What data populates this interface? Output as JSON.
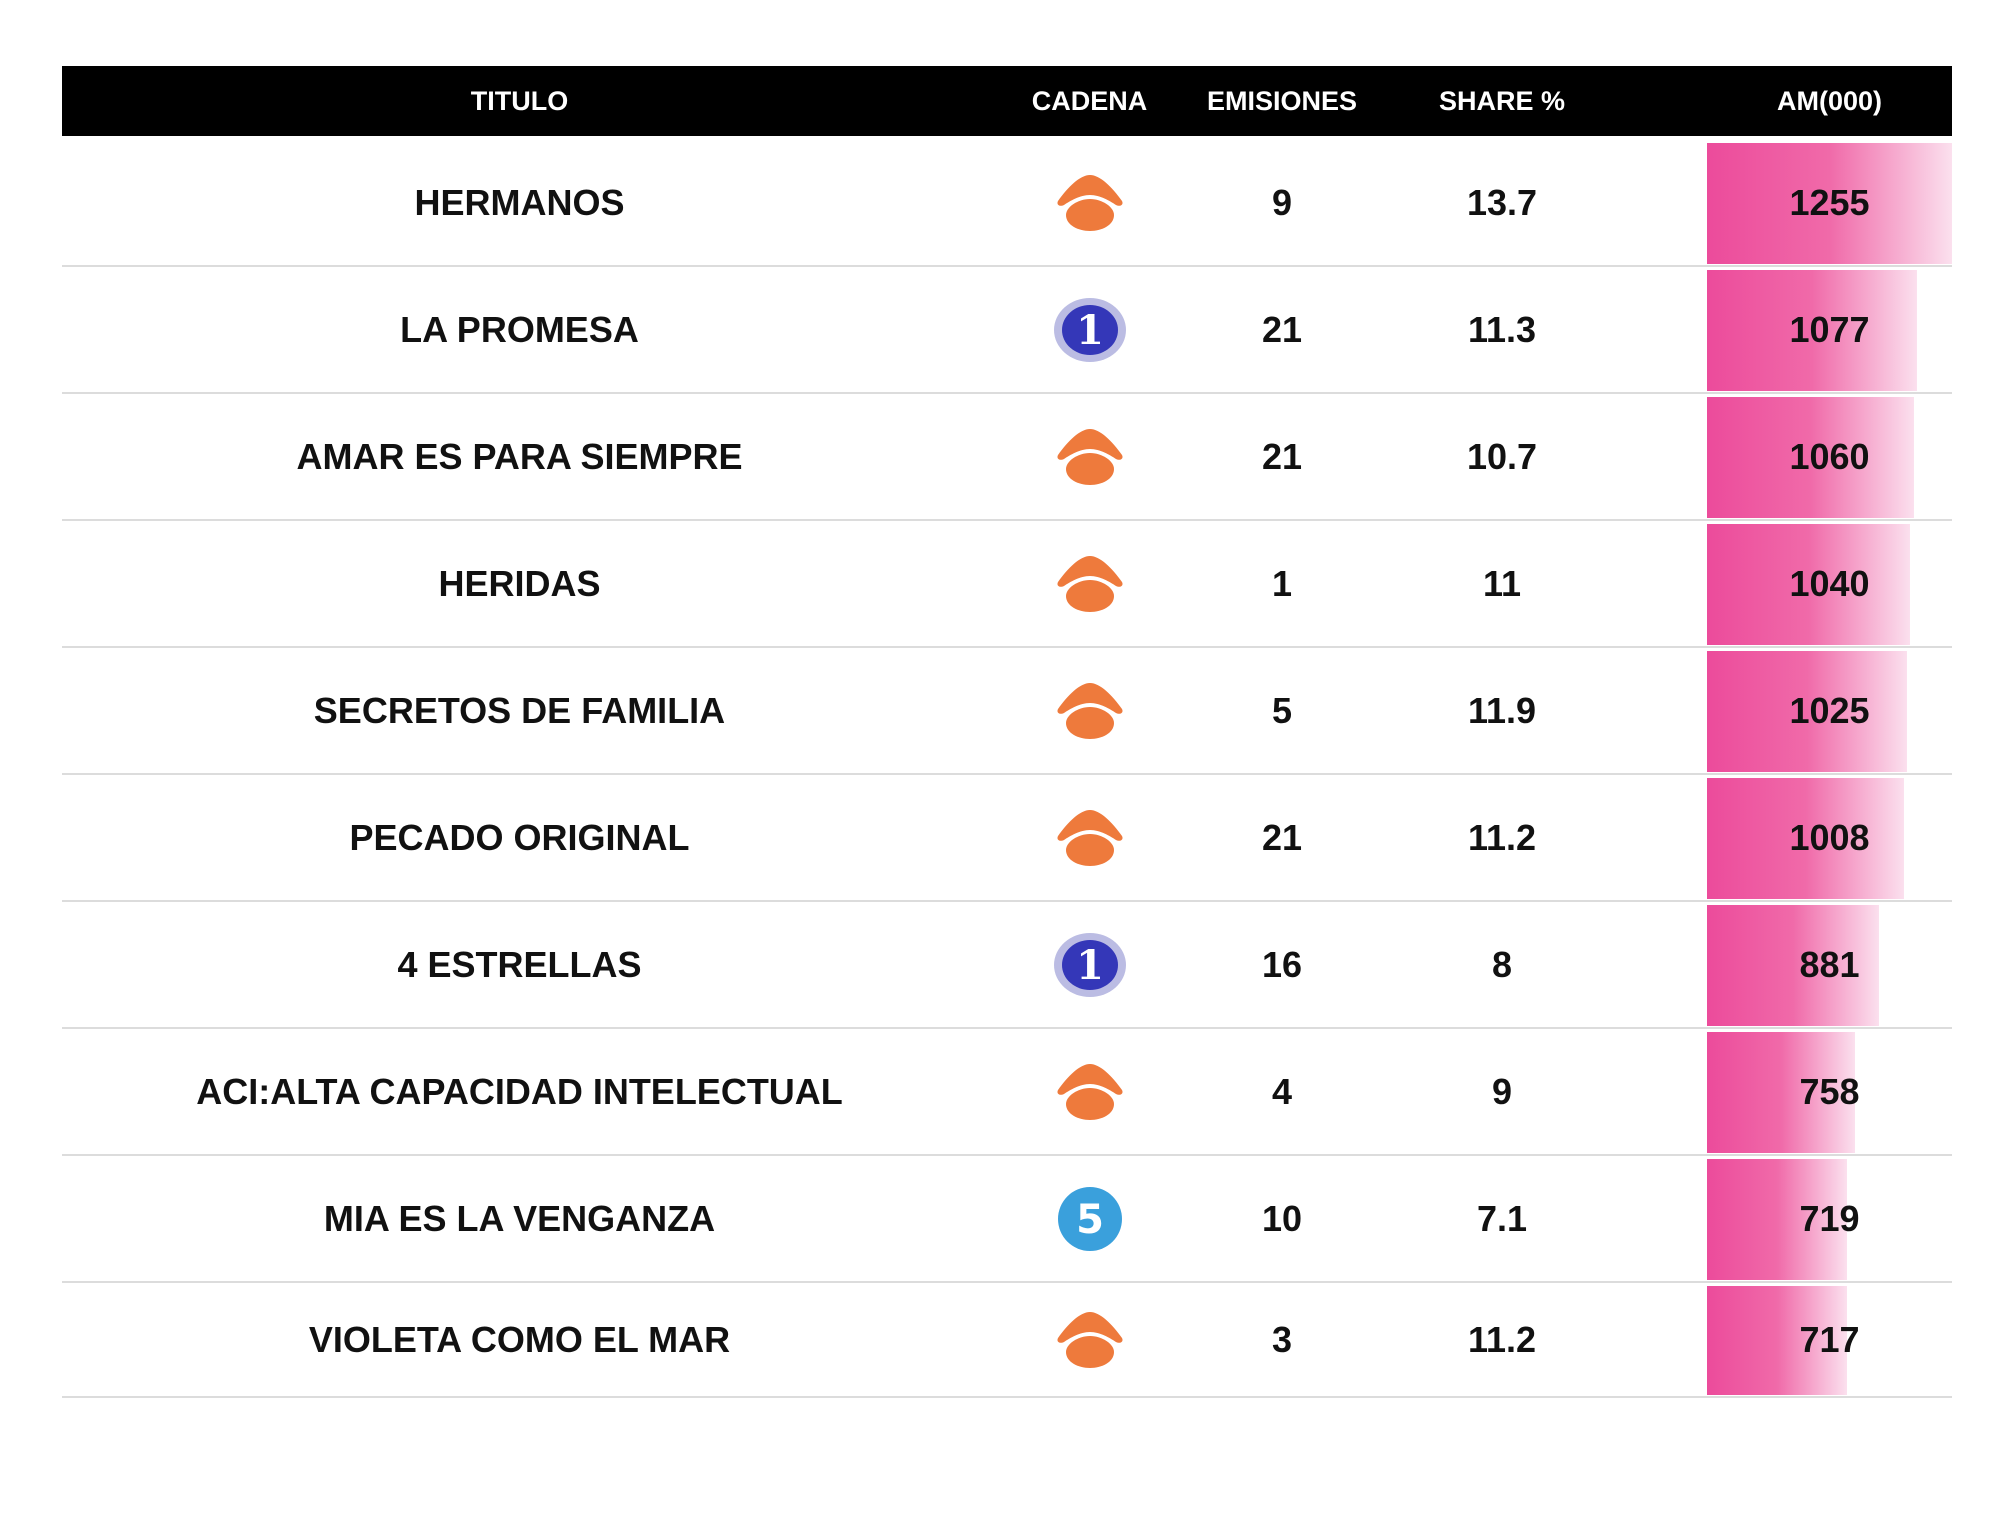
{
  "header": {
    "titulo": "TITULO",
    "cadena": "CADENA",
    "emisiones": "EMISIONES",
    "share": "SHARE %",
    "am": "AM(000)"
  },
  "rows": [
    {
      "titulo": "HERMANOS",
      "cadena_icon": "antena3-logo-icon",
      "emisiones": "9",
      "share": "13.7",
      "am": "1255"
    },
    {
      "titulo": "LA PROMESA",
      "cadena_icon": "la1-logo-icon",
      "emisiones": "21",
      "share": "11.3",
      "am": "1077"
    },
    {
      "titulo": "AMAR ES PARA SIEMPRE",
      "cadena_icon": "antena3-logo-icon",
      "emisiones": "21",
      "share": "10.7",
      "am": "1060"
    },
    {
      "titulo": "HERIDAS",
      "cadena_icon": "antena3-logo-icon",
      "emisiones": "1",
      "share": "11",
      "am": "1040"
    },
    {
      "titulo": "SECRETOS DE FAMILIA",
      "cadena_icon": "antena3-logo-icon",
      "emisiones": "5",
      "share": "11.9",
      "am": "1025"
    },
    {
      "titulo": "PECADO ORIGINAL",
      "cadena_icon": "antena3-logo-icon",
      "emisiones": "21",
      "share": "11.2",
      "am": "1008"
    },
    {
      "titulo": "4 ESTRELLAS",
      "cadena_icon": "la1-logo-icon",
      "emisiones": "16",
      "share": "8",
      "am": "881"
    },
    {
      "titulo": "ACI:ALTA CAPACIDAD INTELECTUAL",
      "cadena_icon": "antena3-logo-icon",
      "emisiones": "4",
      "share": "9",
      "am": "758"
    },
    {
      "titulo": "MIA ES LA VENGANZA",
      "cadena_icon": "telecinco-logo-icon",
      "emisiones": "10",
      "share": "7.1",
      "am": "719"
    },
    {
      "titulo": "VIOLETA COMO EL MAR",
      "cadena_icon": "antena3-logo-icon",
      "emisiones": "3",
      "share": "11.2",
      "am": "717"
    }
  ],
  "chart_data": {
    "type": "table",
    "columns": [
      "TITULO",
      "CADENA",
      "EMISIONES",
      "SHARE %",
      "AM(000)"
    ],
    "bar_column": "AM(000)",
    "bar_max": 1255,
    "colors": {
      "bar_start": "#ec4b9b",
      "bar_end": "#fbe0ee",
      "header_bg": "#000000",
      "header_text": "#ffffff"
    },
    "rows": [
      [
        "HERMANOS",
        "Antena 3",
        9,
        13.7,
        1255
      ],
      [
        "LA PROMESA",
        "La 1",
        21,
        11.3,
        1077
      ],
      [
        "AMAR ES PARA SIEMPRE",
        "Antena 3",
        21,
        10.7,
        1060
      ],
      [
        "HERIDAS",
        "Antena 3",
        1,
        11,
        1040
      ],
      [
        "SECRETOS DE FAMILIA",
        "Antena 3",
        5,
        11.9,
        1025
      ],
      [
        "PECADO ORIGINAL",
        "Antena 3",
        21,
        11.2,
        1008
      ],
      [
        "4 ESTRELLAS",
        "La 1",
        16,
        8,
        881
      ],
      [
        "ACI:ALTA CAPACIDAD INTELECTUAL",
        "Antena 3",
        4,
        9,
        758
      ],
      [
        "MIA ES LA VENGANZA",
        "Telecinco",
        10,
        7.1,
        719
      ],
      [
        "VIOLETA COMO EL MAR",
        "Antena 3",
        3,
        11.2,
        717
      ]
    ]
  }
}
